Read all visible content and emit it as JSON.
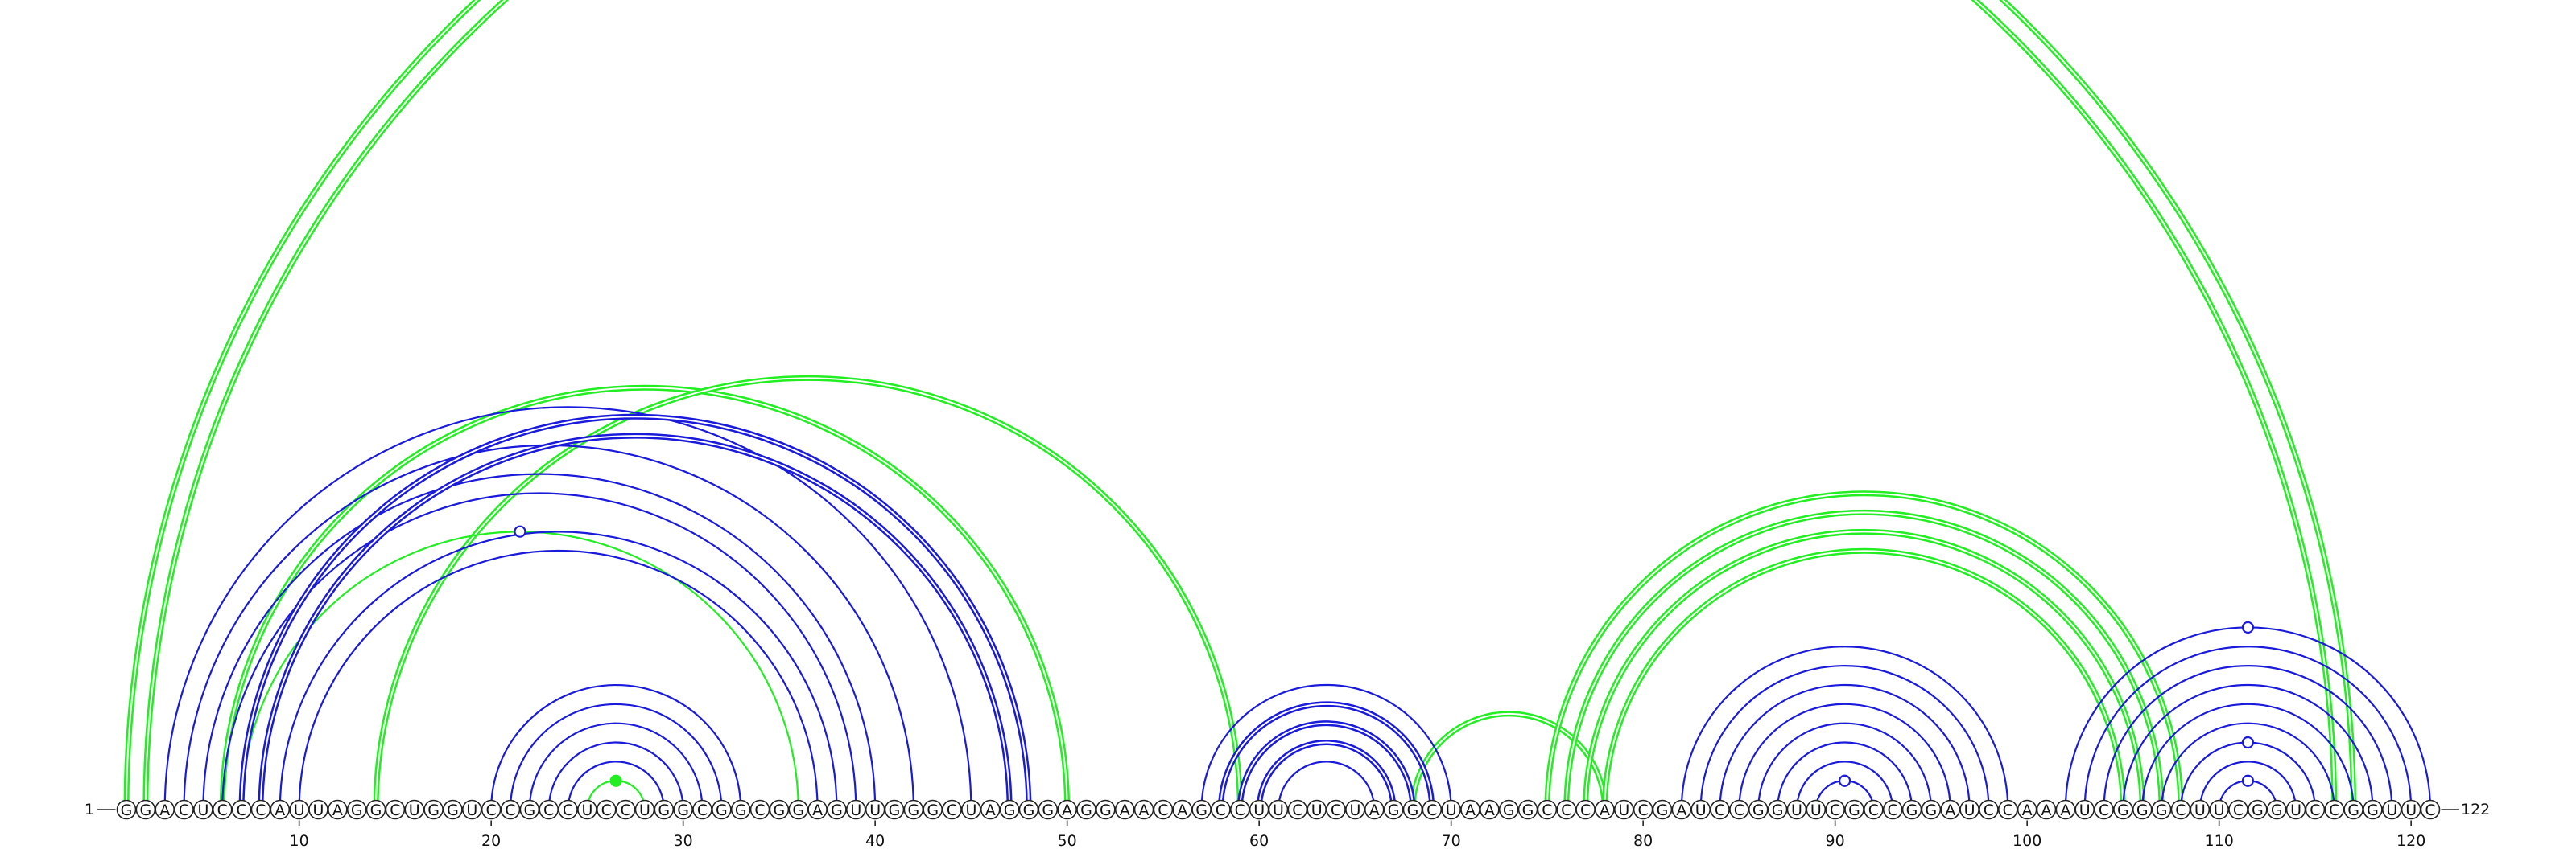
{
  "sequence": "GGACUCCCAUUAGGCUGGUCCGCCUCCUGGCGGCGGAGUUGGGCUAGGGAGGAACAGCCUUCUCUAGGCUAAGGCCCAUCGAUCCGGUUCGCCGGAUCCAAAUCGGGCUUCGGUCCGGUUC",
  "start_label": "1",
  "end_label": "122",
  "ticks": [
    10,
    20,
    30,
    40,
    50,
    60,
    70,
    80,
    90,
    100,
    110,
    120
  ],
  "colors": {
    "blue": "#1a1adb",
    "green": "#22ee22"
  },
  "arcs": [
    {
      "i": 1,
      "j": 117,
      "color": "green",
      "bold": true
    },
    {
      "i": 2,
      "j": 116,
      "color": "green",
      "bold": true
    },
    {
      "i": 6,
      "j": 50,
      "color": "green",
      "bold": true
    },
    {
      "i": 14,
      "j": 59,
      "color": "green",
      "bold": true
    },
    {
      "i": 7,
      "j": 36,
      "color": "green",
      "bold": false
    },
    {
      "i": 25,
      "j": 28,
      "color": "green",
      "bold": false
    },
    {
      "i": 68,
      "j": 78,
      "color": "green",
      "bold": true
    },
    {
      "i": 75,
      "j": 108,
      "color": "green",
      "bold": true
    },
    {
      "i": 76,
      "j": 107,
      "color": "green",
      "bold": true
    },
    {
      "i": 77,
      "j": 106,
      "color": "green",
      "bold": true
    },
    {
      "i": 78,
      "j": 105,
      "color": "green",
      "bold": true
    },
    {
      "i": 3,
      "j": 45,
      "color": "blue",
      "bold": false
    },
    {
      "i": 4,
      "j": 42,
      "color": "blue",
      "bold": false
    },
    {
      "i": 5,
      "j": 40,
      "color": "blue",
      "bold": false
    },
    {
      "i": 6,
      "j": 39,
      "color": "blue",
      "bold": false
    },
    {
      "i": 7,
      "j": 48,
      "color": "blue",
      "bold": true
    },
    {
      "i": 8,
      "j": 47,
      "color": "blue",
      "bold": true
    },
    {
      "i": 9,
      "j": 38,
      "color": "blue",
      "bold": false
    },
    {
      "i": 10,
      "j": 37,
      "color": "blue",
      "bold": false
    },
    {
      "i": 20,
      "j": 33,
      "color": "blue",
      "bold": false
    },
    {
      "i": 21,
      "j": 32,
      "color": "blue",
      "bold": false
    },
    {
      "i": 22,
      "j": 31,
      "color": "blue",
      "bold": false
    },
    {
      "i": 23,
      "j": 30,
      "color": "blue",
      "bold": false
    },
    {
      "i": 24,
      "j": 29,
      "color": "blue",
      "bold": false
    },
    {
      "i": 57,
      "j": 70,
      "color": "blue",
      "bold": false
    },
    {
      "i": 58,
      "j": 69,
      "color": "blue",
      "bold": true
    },
    {
      "i": 59,
      "j": 68,
      "color": "blue",
      "bold": true
    },
    {
      "i": 60,
      "j": 67,
      "color": "blue",
      "bold": true
    },
    {
      "i": 61,
      "j": 66,
      "color": "blue",
      "bold": false
    },
    {
      "i": 82,
      "j": 99,
      "color": "blue",
      "bold": false
    },
    {
      "i": 83,
      "j": 98,
      "color": "blue",
      "bold": false
    },
    {
      "i": 84,
      "j": 97,
      "color": "blue",
      "bold": false
    },
    {
      "i": 85,
      "j": 96,
      "color": "blue",
      "bold": false
    },
    {
      "i": 86,
      "j": 95,
      "color": "blue",
      "bold": false
    },
    {
      "i": 87,
      "j": 94,
      "color": "blue",
      "bold": false
    },
    {
      "i": 88,
      "j": 93,
      "color": "blue",
      "bold": false
    },
    {
      "i": 89,
      "j": 92,
      "color": "blue",
      "bold": false
    },
    {
      "i": 102,
      "j": 121,
      "color": "blue",
      "bold": false
    },
    {
      "i": 103,
      "j": 120,
      "color": "blue",
      "bold": false
    },
    {
      "i": 104,
      "j": 119,
      "color": "blue",
      "bold": false
    },
    {
      "i": 105,
      "j": 118,
      "color": "blue",
      "bold": false
    },
    {
      "i": 106,
      "j": 117,
      "color": "blue",
      "bold": false
    },
    {
      "i": 107,
      "j": 116,
      "color": "blue",
      "bold": false
    },
    {
      "i": 108,
      "j": 115,
      "color": "blue",
      "bold": false
    },
    {
      "i": 109,
      "j": 114,
      "color": "blue",
      "bold": false
    },
    {
      "i": 110,
      "j": 113,
      "color": "blue",
      "bold": false
    }
  ],
  "markers": [
    {
      "a": 7,
      "b": 36,
      "color": "blue",
      "filled": false
    },
    {
      "a": 25,
      "b": 28,
      "color": "green",
      "filled": true
    },
    {
      "a": 89,
      "b": 92,
      "color": "blue",
      "filled": false
    },
    {
      "a": 102,
      "b": 121,
      "color": "blue",
      "filled": false
    },
    {
      "a": 108,
      "b": 115,
      "color": "blue",
      "filled": false
    },
    {
      "a": 110,
      "b": 113,
      "color": "blue",
      "filled": false
    }
  ]
}
